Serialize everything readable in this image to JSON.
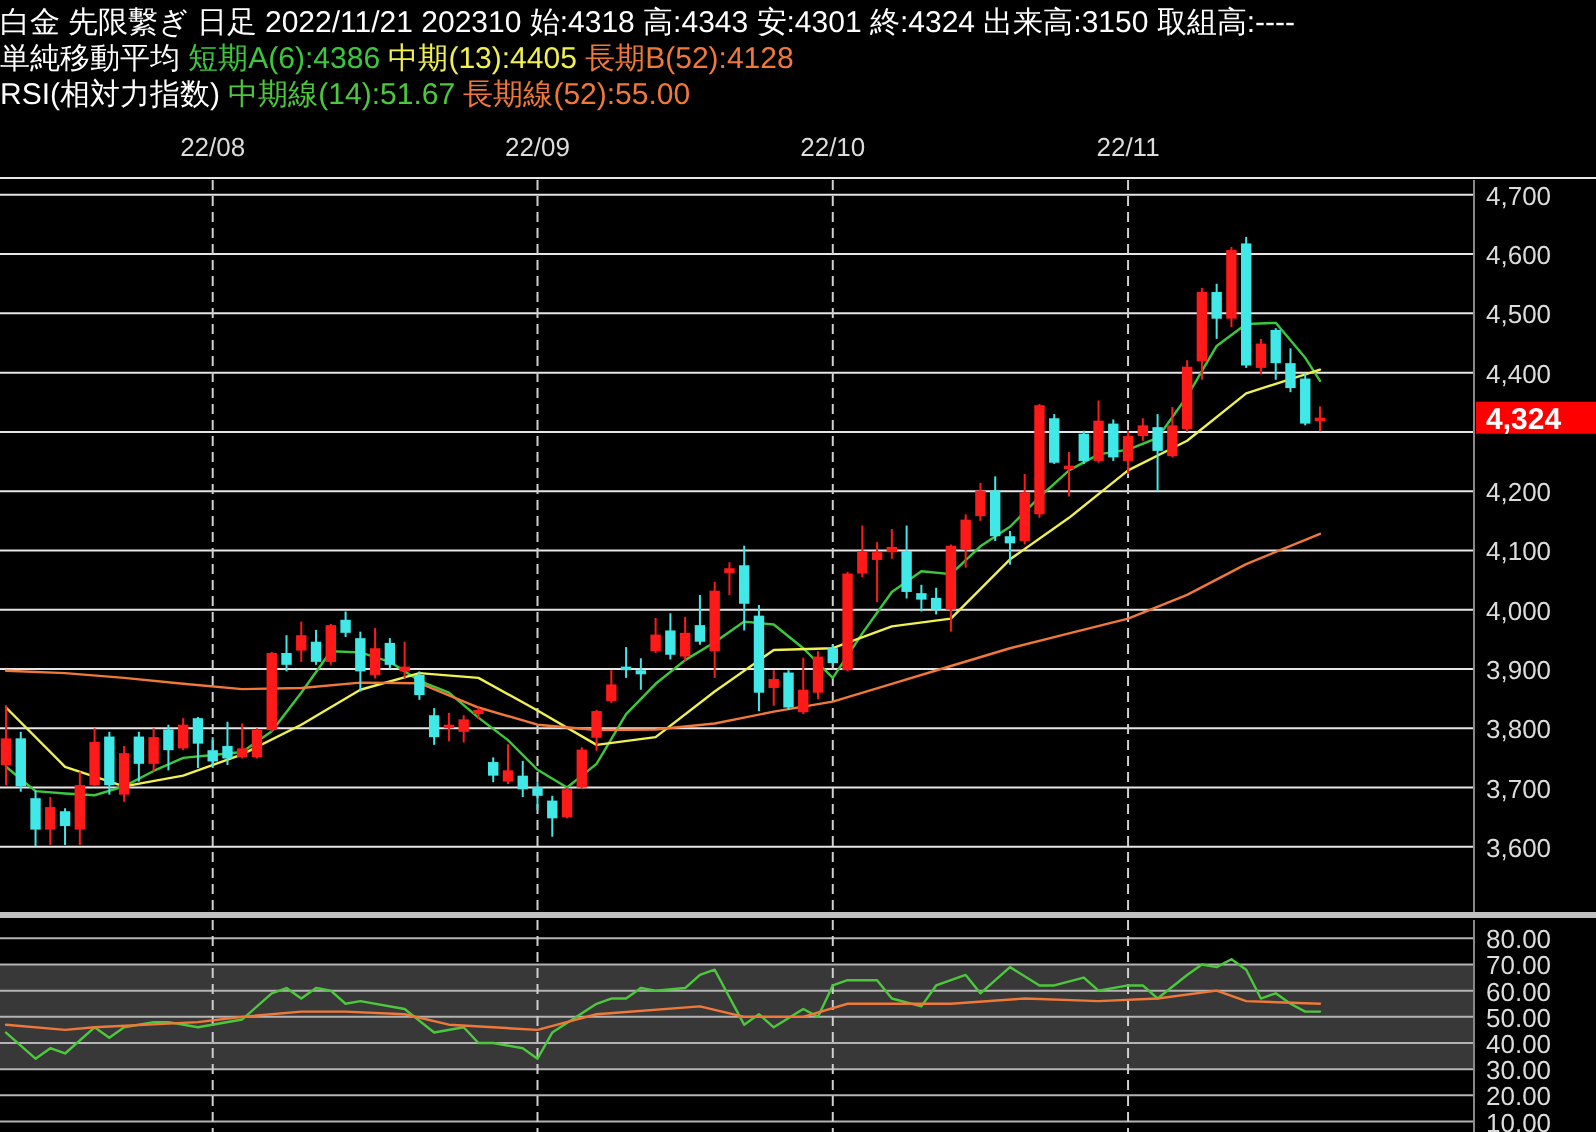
{
  "chart_data": [
    {
      "type": "candlestick",
      "title": "白金 先限繫ぎ 日足 2022/11/21 202310 始:4318 高:4343 安:4301 終:4324 出来高:3150 取組高:----",
      "legend_title": "単純移動平均",
      "legend": "top left",
      "grid": true,
      "categories": [
        null,
        null,
        null,
        null,
        null,
        null,
        null,
        null,
        null,
        null,
        null,
        null,
        null,
        null,
        "22/08",
        null,
        null,
        null,
        null,
        null,
        null,
        null,
        null,
        null,
        null,
        null,
        null,
        null,
        null,
        null,
        null,
        null,
        null,
        null,
        null,
        null,
        "22/09",
        null,
        null,
        null,
        null,
        null,
        null,
        null,
        null,
        null,
        null,
        null,
        null,
        null,
        null,
        null,
        null,
        null,
        null,
        null,
        "22/10",
        null,
        null,
        null,
        null,
        null,
        null,
        null,
        null,
        null,
        null,
        null,
        null,
        null,
        null,
        null,
        null,
        null,
        null,
        null,
        "22/11",
        null,
        null,
        null,
        null,
        null,
        null,
        null,
        null,
        null,
        null,
        null,
        null,
        null
      ],
      "ylim": [
        3490,
        4725
      ],
      "yticks": [
        {
          "value": 3600,
          "label": "3,600"
        },
        {
          "value": 3700,
          "label": "3,700"
        },
        {
          "value": 3800,
          "label": "3,800"
        },
        {
          "value": 3900,
          "label": "3,900"
        },
        {
          "value": 4000,
          "label": "4,000"
        },
        {
          "value": 4100,
          "label": "4,100"
        },
        {
          "value": 4200,
          "label": "4,200"
        },
        {
          "value": 4300,
          "label": null
        },
        {
          "value": 4400,
          "label": "4,400"
        },
        {
          "value": 4500,
          "label": "4,500"
        },
        {
          "value": 4600,
          "label": "4,600"
        },
        {
          "value": 4700,
          "label": "4,700"
        }
      ],
      "ohlc": [
        [
          3738,
          3839,
          3704,
          3783
        ],
        [
          3783,
          3794,
          3693,
          3702
        ],
        [
          3682,
          3695,
          3601,
          3629
        ],
        [
          3629,
          3684,
          3603,
          3667
        ],
        [
          3660,
          3665,
          3603,
          3635
        ],
        [
          3629,
          3727,
          3603,
          3704
        ],
        [
          3704,
          3800,
          3702,
          3777
        ],
        [
          3786,
          3794,
          3688,
          3704
        ],
        [
          3688,
          3770,
          3676,
          3758
        ],
        [
          3786,
          3794,
          3710,
          3740
        ],
        [
          3740,
          3800,
          3727,
          3785
        ],
        [
          3798,
          3806,
          3729,
          3763
        ],
        [
          3766,
          3817,
          3763,
          3806
        ],
        [
          3817,
          3819,
          3733,
          3774
        ],
        [
          3763,
          3785,
          3733,
          3744
        ],
        [
          3770,
          3811,
          3738,
          3749
        ],
        [
          3751,
          3808,
          3749,
          3766
        ],
        [
          3751,
          3800,
          3749,
          3797
        ],
        [
          3797,
          3929,
          3794,
          3927
        ],
        [
          3927,
          3957,
          3896,
          3907
        ],
        [
          3931,
          3980,
          3912,
          3957
        ],
        [
          3946,
          3966,
          3907,
          3912
        ],
        [
          3912,
          3976,
          3907,
          3974
        ],
        [
          3983,
          3997,
          3954,
          3961
        ],
        [
          3952,
          3963,
          3862,
          3896
        ],
        [
          3890,
          3969,
          3884,
          3935
        ],
        [
          3944,
          3952,
          3901,
          3907
        ],
        [
          3896,
          3946,
          3884,
          3904
        ],
        [
          3890,
          3896,
          3848,
          3856
        ],
        [
          3822,
          3834,
          3772,
          3785
        ],
        [
          3800,
          3826,
          3778,
          3806
        ],
        [
          3794,
          3822,
          3776,
          3815
        ],
        [
          3824,
          3835,
          3816,
          3831
        ],
        [
          3743,
          3751,
          3709,
          3720
        ],
        [
          3710,
          3773,
          3706,
          3729
        ],
        [
          3720,
          3745,
          3684,
          3697
        ],
        [
          3701,
          3709,
          3662,
          3686
        ],
        [
          3678,
          3686,
          3617,
          3648
        ],
        [
          3650,
          3700,
          3648,
          3697
        ],
        [
          3700,
          3768,
          3698,
          3764
        ],
        [
          3784,
          3831,
          3762,
          3829
        ],
        [
          3846,
          3898,
          3843,
          3874
        ],
        [
          3904,
          3937,
          3885,
          3898
        ],
        [
          3898,
          3918,
          3865,
          3891
        ],
        [
          3930,
          3986,
          3927,
          3958
        ],
        [
          3965,
          3994,
          3916,
          3924
        ],
        [
          3921,
          3988,
          3913,
          3961
        ],
        [
          3974,
          4025,
          3941,
          3946
        ],
        [
          3930,
          4047,
          3885,
          4032
        ],
        [
          4062,
          4080,
          4025,
          4070
        ],
        [
          4075,
          4108,
          3965,
          4010
        ],
        [
          3990,
          4008,
          3829,
          3860
        ],
        [
          3868,
          3898,
          3838,
          3883
        ],
        [
          3894,
          3898,
          3831,
          3835
        ],
        [
          3827,
          3919,
          3824,
          3865
        ],
        [
          3860,
          3930,
          3849,
          3921
        ],
        [
          3935,
          3941,
          3905,
          3910
        ],
        [
          3898,
          4064,
          3896,
          4061
        ],
        [
          4061,
          4142,
          4055,
          4099
        ],
        [
          4084,
          4114,
          4013,
          4097
        ],
        [
          4097,
          4136,
          4086,
          4106
        ],
        [
          4099,
          4142,
          4019,
          4030
        ],
        [
          4028,
          4042,
          3997,
          4017
        ],
        [
          4020,
          4037,
          3992,
          4000
        ],
        [
          4000,
          4110,
          3963,
          4108
        ],
        [
          4101,
          4161,
          4071,
          4152
        ],
        [
          4158,
          4214,
          4150,
          4201
        ],
        [
          4201,
          4225,
          4116,
          4124
        ],
        [
          4124,
          4133,
          4076,
          4112
        ],
        [
          4116,
          4229,
          4110,
          4198
        ],
        [
          4161,
          4347,
          4155,
          4345
        ],
        [
          4323,
          4330,
          4246,
          4248
        ],
        [
          4237,
          4266,
          4191,
          4243
        ],
        [
          4297,
          4302,
          4246,
          4251
        ],
        [
          4251,
          4353,
          4248,
          4319
        ],
        [
          4314,
          4321,
          4251,
          4257
        ],
        [
          4251,
          4302,
          4229,
          4293
        ],
        [
          4293,
          4323,
          4285,
          4311
        ],
        [
          4308,
          4330,
          4200,
          4268
        ],
        [
          4259,
          4342,
          4257,
          4311
        ],
        [
          4305,
          4421,
          4300,
          4410
        ],
        [
          4419,
          4543,
          4388,
          4536
        ],
        [
          4536,
          4550,
          4457,
          4491
        ],
        [
          4491,
          4612,
          4477,
          4607
        ],
        [
          4618,
          4629,
          4408,
          4412
        ],
        [
          4408,
          4457,
          4397,
          4449
        ],
        [
          4472,
          4475,
          4388,
          4416
        ],
        [
          4416,
          4441,
          4367,
          4374
        ],
        [
          4390,
          4399,
          4311,
          4314
        ],
        [
          4318,
          4343,
          4301,
          4324
        ]
      ],
      "colors": [
        "#ff1a1a",
        "#40e8e8",
        "#40e8e8",
        "#ff1a1a",
        "#40e8e8",
        "#ff1a1a",
        "#ff1a1a",
        "#40e8e8",
        "#ff1a1a",
        "#40e8e8",
        "#ff1a1a",
        "#40e8e8",
        "#ff1a1a",
        "#40e8e8",
        "#40e8e8",
        "#40e8e8",
        "#ff1a1a",
        "#ff1a1a",
        "#ff1a1a",
        "#40e8e8",
        "#ff1a1a",
        "#40e8e8",
        "#ff1a1a",
        "#40e8e8",
        "#40e8e8",
        "#ff1a1a",
        "#40e8e8",
        "#ff1a1a",
        "#40e8e8",
        "#40e8e8",
        "#ff1a1a",
        "#ff1a1a",
        "#ff1a1a",
        "#40e8e8",
        "#ff1a1a",
        "#40e8e8",
        "#40e8e8",
        "#40e8e8",
        "#ff1a1a",
        "#ff1a1a",
        "#ff1a1a",
        "#ff1a1a",
        "#40e8e8",
        "#40e8e8",
        "#ff1a1a",
        "#40e8e8",
        "#ff1a1a",
        "#40e8e8",
        "#ff1a1a",
        "#ff1a1a",
        "#40e8e8",
        "#40e8e8",
        "#ff1a1a",
        "#40e8e8",
        "#ff1a1a",
        "#ff1a1a",
        "#40e8e8",
        "#ff1a1a",
        "#ff1a1a",
        "#ff1a1a",
        "#ff1a1a",
        "#40e8e8",
        "#40e8e8",
        "#40e8e8",
        "#ff1a1a",
        "#ff1a1a",
        "#ff1a1a",
        "#40e8e8",
        "#40e8e8",
        "#ff1a1a",
        "#ff1a1a",
        "#40e8e8",
        "#ff1a1a",
        "#40e8e8",
        "#ff1a1a",
        "#40e8e8",
        "#ff1a1a",
        "#ff1a1a",
        "#40e8e8",
        "#ff1a1a",
        "#ff1a1a",
        "#ff1a1a",
        "#40e8e8",
        "#ff1a1a",
        "#40e8e8",
        "#ff1a1a",
        "#40e8e8",
        "#40e8e8",
        "#40e8e8",
        "#ff1a1a"
      ],
      "series": [
        {
          "type": "line",
          "name": "短期A(6):4386",
          "color": "#3cc83c",
          "values": [
            3735,
            null,
            3694,
            null,
            3690,
            null,
            3687,
            null,
            3702,
            null,
            3728,
            null,
            3750,
            null,
            3755,
            null,
            3760,
            null,
            3795,
            null,
            3860,
            null,
            3930,
            null,
            3928,
            null,
            3912,
            null,
            3880,
            null,
            3860,
            null,
            3818,
            null,
            3780,
            null,
            3730,
            null,
            3700,
            null,
            3740,
            null,
            3824,
            null,
            3875,
            null,
            3915,
            null,
            3945,
            null,
            3980,
            null,
            3975,
            null,
            3935,
            null,
            3885,
            null,
            3960,
            null,
            4030,
            null,
            4065,
            null,
            4060,
            null,
            4107,
            null,
            4140,
            null,
            4190,
            null,
            4235,
            null,
            4262,
            null,
            4270,
            null,
            4290,
            null,
            4360,
            null,
            4445,
            null,
            4482,
            null,
            4484,
            null,
            4425,
            4386
          ]
        },
        {
          "type": "line",
          "name": "中期(13):4405",
          "color": "#f0f050",
          "values": [
            3835,
            null,
            null,
            null,
            3735,
            null,
            null,
            null,
            3702,
            null,
            null,
            null,
            3720,
            null,
            null,
            null,
            3756,
            null,
            null,
            null,
            3806,
            null,
            null,
            null,
            3865,
            null,
            null,
            null,
            3893,
            null,
            null,
            null,
            3885,
            null,
            null,
            null,
            3830,
            null,
            null,
            null,
            3772,
            null,
            null,
            null,
            3785,
            null,
            null,
            null,
            3862,
            null,
            null,
            null,
            3932,
            null,
            null,
            null,
            3935,
            null,
            null,
            null,
            3972,
            null,
            null,
            null,
            3985,
            null,
            null,
            null,
            4085,
            null,
            null,
            null,
            4155,
            null,
            null,
            null,
            4235,
            null,
            null,
            null,
            4285,
            null,
            null,
            null,
            4365,
            null,
            null,
            null,
            null,
            4405
          ]
        },
        {
          "type": "line",
          "name": "長期B(52):4128",
          "color": "#f07838",
          "values": [
            3897,
            null,
            null,
            null,
            3893,
            null,
            null,
            null,
            3885,
            null,
            null,
            null,
            3875,
            null,
            null,
            null,
            3866,
            null,
            null,
            null,
            3868,
            null,
            null,
            null,
            3877,
            null,
            null,
            null,
            3876,
            null,
            null,
            null,
            3835,
            null,
            null,
            null,
            3806,
            null,
            null,
            null,
            3797,
            null,
            null,
            null,
            3798,
            null,
            null,
            null,
            3808,
            null,
            null,
            null,
            3828,
            null,
            null,
            null,
            3845,
            null,
            null,
            null,
            3875,
            null,
            null,
            null,
            3905,
            null,
            null,
            null,
            3935,
            null,
            null,
            null,
            3960,
            null,
            null,
            null,
            3985,
            null,
            null,
            null,
            4025,
            null,
            null,
            null,
            4077,
            null,
            null,
            null,
            null,
            4128
          ]
        }
      ],
      "annotations": [
        "4,324"
      ]
    },
    {
      "type": "line",
      "legend_title": "RSI(相対力指数)",
      "legend": "top left",
      "grid": true,
      "tick_labels": "y",
      "categories": [
        null,
        null,
        null,
        null,
        null,
        null,
        null,
        null,
        null,
        null,
        null,
        null,
        null,
        null,
        null,
        null,
        null,
        null,
        null,
        null,
        null,
        null,
        null,
        null,
        null,
        null,
        null,
        null,
        null,
        null,
        null,
        null,
        null,
        null,
        null,
        null,
        null,
        null,
        null,
        null,
        null,
        null,
        null,
        null,
        null,
        null,
        null,
        null,
        null,
        null,
        null,
        null,
        null,
        null,
        null,
        null,
        null,
        null,
        null,
        null,
        null,
        null,
        null,
        null,
        null,
        null,
        null,
        null,
        null,
        null,
        null,
        null,
        null,
        null,
        null,
        null,
        null,
        null,
        null,
        null,
        null,
        null,
        null,
        null,
        null,
        null,
        null,
        null,
        null,
        null
      ],
      "ylim": [
        6,
        87
      ],
      "yticks": [
        {
          "value": 10,
          "label": "10.00"
        },
        {
          "value": 20,
          "label": "20.00"
        },
        {
          "value": 30,
          "label": "30.00"
        },
        {
          "value": 40,
          "label": "40.00"
        },
        {
          "value": 50,
          "label": "50.00"
        },
        {
          "value": 60,
          "label": "60.00"
        },
        {
          "value": 70,
          "label": "70.00"
        },
        {
          "value": 80,
          "label": "80.00"
        }
      ],
      "bands": [
        {
          "axis": "y",
          "from": 30,
          "to": 70,
          "color": "#383838"
        }
      ],
      "series": [
        {
          "name": "中期線(14):51.67",
          "color": "#4cc83c",
          "values": [
            44,
            null,
            34,
            38,
            36,
            null,
            46,
            42,
            46,
            null,
            48,
            48,
            null,
            46,
            null,
            null,
            49,
            null,
            59,
            61,
            57,
            61,
            60,
            55,
            56,
            null,
            null,
            53,
            null,
            44,
            null,
            46,
            40,
            40,
            null,
            38,
            34,
            44,
            null,
            null,
            55,
            57,
            57,
            61,
            60,
            null,
            61,
            66,
            68,
            null,
            47,
            51,
            46,
            null,
            53,
            50,
            62,
            64,
            null,
            64,
            57,
            null,
            54,
            62,
            null,
            66,
            59,
            null,
            69,
            null,
            62,
            62,
            null,
            65,
            60,
            null,
            62,
            62,
            57,
            null,
            66,
            70,
            69,
            72,
            68,
            57,
            59,
            55,
            52,
            52
          ]
        },
        {
          "name": "長期線(52):55.00",
          "color": "#f07838",
          "values": [
            47,
            null,
            null,
            null,
            45,
            null,
            46,
            null,
            null,
            null,
            null,
            null,
            null,
            48,
            null,
            null,
            50,
            null,
            null,
            null,
            52,
            null,
            null,
            52,
            null,
            null,
            null,
            51,
            null,
            null,
            47,
            null,
            null,
            46,
            null,
            null,
            45,
            null,
            null,
            null,
            51,
            null,
            null,
            null,
            null,
            null,
            null,
            54,
            null,
            null,
            50,
            null,
            null,
            null,
            50,
            null,
            null,
            55,
            null,
            null,
            null,
            null,
            null,
            null,
            55,
            null,
            null,
            null,
            null,
            57,
            null,
            null,
            null,
            null,
            56,
            null,
            null,
            null,
            57,
            null,
            null,
            null,
            60,
            null,
            56,
            null,
            null,
            null,
            null,
            55
          ]
        }
      ]
    }
  ]
}
